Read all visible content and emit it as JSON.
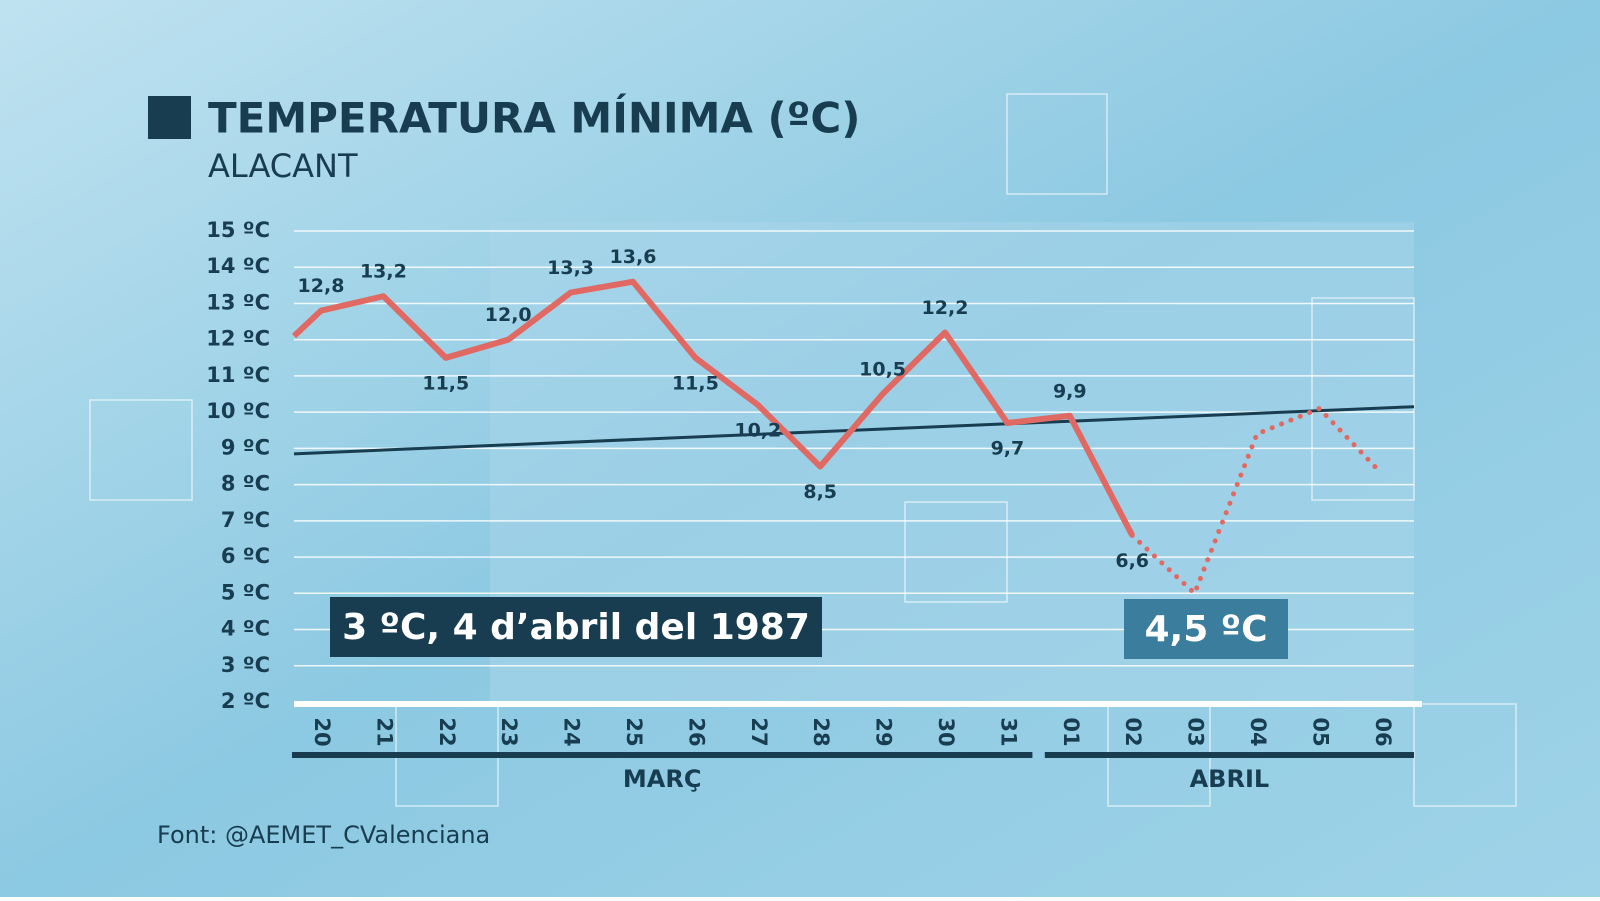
{
  "chart_data": {
    "type": "line",
    "title": "TEMPERATURA MÍNIMA (ºC)",
    "subtitle": "ALACANT",
    "source": "Font: @AEMET_CValenciana",
    "categories": [
      null,
      "20",
      "21",
      "22",
      "23",
      "24",
      "25",
      "26",
      "27",
      "28",
      "29",
      "30",
      "31",
      "01",
      "02",
      "03",
      "04",
      "05",
      "06"
    ],
    "month_labels": [
      "MARÇ",
      "ABRIL"
    ],
    "series": [
      {
        "color": "#e06a63",
        "style": "solid",
        "values": [
          12.1,
          12.8,
          13.2,
          11.5,
          12.0,
          13.3,
          13.6,
          11.5,
          10.2,
          8.5,
          10.5,
          12.2,
          9.7,
          9.9,
          6.6,
          null,
          null,
          null,
          null
        ],
        "value_labels": [
          null,
          "12,8",
          "13,2",
          "11,5",
          "12,0",
          "13,3",
          "13,6",
          "11,5",
          "10,2",
          "8,5",
          "10,5",
          "12,2",
          "9,7",
          "9,9",
          "6,6",
          null,
          null,
          null,
          null
        ]
      },
      {
        "color": "#e06a63",
        "style": "dotted",
        "values": [
          null,
          null,
          null,
          null,
          null,
          null,
          null,
          null,
          null,
          null,
          null,
          null,
          null,
          null,
          6.6,
          5.0,
          9.4,
          10.1,
          8.3
        ]
      }
    ],
    "trend": {
      "start": 8.85,
      "end": 10.15,
      "color": "#183d50"
    },
    "annotations": [
      "3 ºC, 4 d’abril del 1987",
      "4,5 ºC"
    ],
    "ylim": [
      2,
      15
    ],
    "yticks": [
      {
        "value": 2,
        "label": "2 ºC"
      },
      {
        "value": 3,
        "label": "3 ºC"
      },
      {
        "value": 4,
        "label": "4 ºC"
      },
      {
        "value": 5,
        "label": "5 ºC"
      },
      {
        "value": 6,
        "label": "6 ºC"
      },
      {
        "value": 7,
        "label": "7 ºC"
      },
      {
        "value": 8,
        "label": "8 ºC"
      },
      {
        "value": 9,
        "label": "9 ºC"
      },
      {
        "value": 10,
        "label": "10 ºC"
      },
      {
        "value": 11,
        "label": "11 ºC"
      },
      {
        "value": 12,
        "label": "12 ºC"
      },
      {
        "value": 13,
        "label": "13 ºC"
      },
      {
        "value": 14,
        "label": "14 ºC"
      },
      {
        "value": 15,
        "label": "15 ºC"
      }
    ],
    "grid": true
  }
}
